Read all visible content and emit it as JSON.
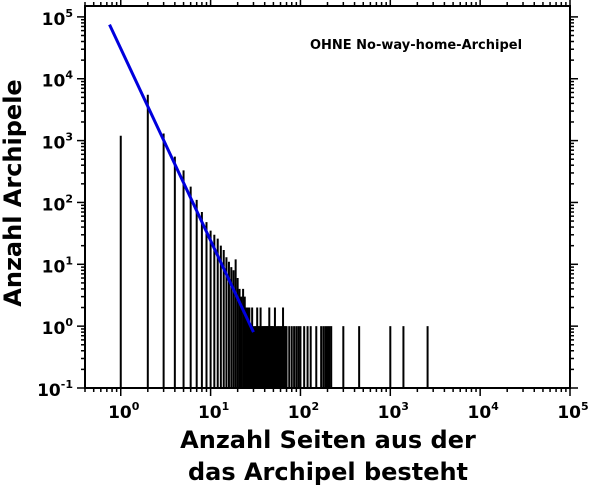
{
  "chart_data": {
    "type": "bar",
    "xscale": "log",
    "yscale": "log",
    "xlim": [
      0.4,
      100000
    ],
    "ylim": [
      0.1,
      150000
    ],
    "x_ticks": [
      {
        "base": "10",
        "exp": "0"
      },
      {
        "base": "10",
        "exp": "1"
      },
      {
        "base": "10",
        "exp": "2"
      },
      {
        "base": "10",
        "exp": "3"
      },
      {
        "base": "10",
        "exp": "4"
      },
      {
        "base": "10",
        "exp": "5"
      }
    ],
    "y_ticks": [
      {
        "base": "10",
        "exp": "-1"
      },
      {
        "base": "10",
        "exp": "0"
      },
      {
        "base": "10",
        "exp": "1"
      },
      {
        "base": "10",
        "exp": "2"
      },
      {
        "base": "10",
        "exp": "3"
      },
      {
        "base": "10",
        "exp": "4"
      },
      {
        "base": "10",
        "exp": "5"
      }
    ],
    "ylabel": "Anzahl Archipele",
    "xlabel_line1": "Anzahl Seiten aus der",
    "xlabel_line2": "das Archipel besteht",
    "annotation": "OHNE No-way-home-Archipel",
    "grid": false,
    "bar_color": "#000000",
    "fit_color": "#0000dd",
    "bars": {
      "x": [
        1,
        2,
        3,
        4,
        5,
        6,
        7,
        8,
        9,
        10,
        11,
        12,
        13,
        14,
        15,
        16,
        17,
        18,
        19,
        20,
        21,
        22,
        23,
        24,
        25,
        26,
        27,
        28,
        29,
        30,
        31,
        32,
        33,
        34,
        35,
        36,
        37,
        38,
        39,
        40,
        41,
        42,
        43,
        44,
        45,
        46,
        47,
        48,
        49,
        50,
        52,
        54,
        56,
        58,
        60,
        62,
        64,
        66,
        68,
        70,
        75,
        80,
        85,
        90,
        95,
        100,
        110,
        120,
        130,
        150,
        170,
        180,
        190,
        200,
        210,
        220,
        300,
        450,
        1000,
        1400,
        2600
      ],
      "y": [
        1200,
        5500,
        1300,
        550,
        330,
        180,
        110,
        70,
        48,
        35,
        30,
        26,
        20,
        17,
        13,
        11,
        9,
        8,
        12,
        6,
        4,
        3,
        4,
        3,
        2,
        2,
        2,
        1,
        2,
        1,
        1,
        1,
        2,
        1,
        1,
        2,
        1,
        1,
        1,
        1,
        1,
        1,
        1,
        1,
        2,
        1,
        1,
        1,
        1,
        1,
        2,
        1,
        1,
        1,
        1,
        1,
        2,
        1,
        1,
        1,
        1,
        1,
        1,
        1,
        1,
        1,
        1,
        1,
        1,
        1,
        1,
        1,
        1,
        1,
        1,
        1,
        1,
        1,
        1,
        1,
        1
      ]
    },
    "fit_line": {
      "x": [
        0.75,
        30
      ],
      "y": [
        75000,
        0.8
      ]
    }
  }
}
